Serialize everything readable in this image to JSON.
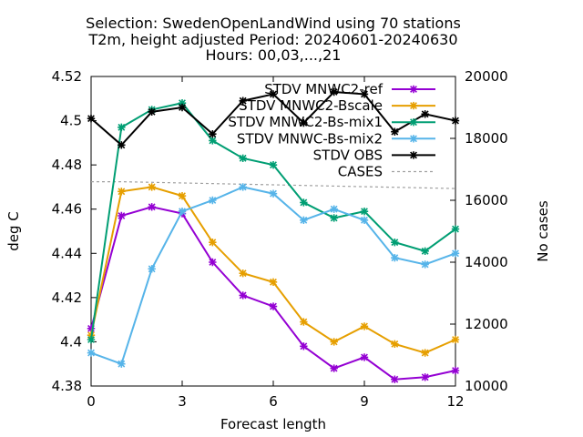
{
  "chart_data": {
    "type": "line",
    "title_lines": [
      "Selection: SwedenOpenLandWind using    70 stations",
      "T2m, height adjusted   Period: 20240601-20240630",
      "Hours: 00,03,...,21"
    ],
    "xlabel": "Forecast length",
    "ylabel": "deg C",
    "y2label": "No cases",
    "xlim": [
      0,
      12
    ],
    "ylim": [
      4.38,
      4.52
    ],
    "y2lim": [
      10000,
      20000
    ],
    "xticks": [
      0,
      3,
      6,
      9,
      12
    ],
    "yticks": [
      4.38,
      4.4,
      4.42,
      4.44,
      4.46,
      4.48,
      4.5,
      4.52
    ],
    "y2ticks": [
      10000,
      12000,
      14000,
      16000,
      18000,
      20000
    ],
    "legend_position": "top-right",
    "x": [
      0,
      1,
      2,
      3,
      4,
      5,
      6,
      7,
      8,
      9,
      10,
      11,
      12
    ],
    "series": [
      {
        "name": "STDV MNWC2-ref",
        "color": "#9400d3",
        "axis": "y1",
        "marker": "star",
        "values": [
          4.406,
          4.457,
          4.461,
          4.458,
          4.436,
          4.421,
          4.416,
          4.398,
          4.388,
          4.393,
          4.383,
          4.384,
          4.387
        ]
      },
      {
        "name": "STDV MNWC2-Bscale",
        "color": "#e69f00",
        "axis": "y1",
        "marker": "star",
        "values": [
          4.403,
          4.468,
          4.47,
          4.466,
          4.445,
          4.431,
          4.427,
          4.409,
          4.4,
          4.407,
          4.399,
          4.395,
          4.401
        ]
      },
      {
        "name": "STDV MNWC2-Bs-mix1",
        "color": "#009e73",
        "axis": "y1",
        "marker": "star",
        "values": [
          4.401,
          4.497,
          4.505,
          4.508,
          4.491,
          4.483,
          4.48,
          4.463,
          4.456,
          4.459,
          4.445,
          4.441,
          4.451
        ]
      },
      {
        "name": "STDV MNWC-Bs-mix2",
        "color": "#56b4e9",
        "axis": "y1",
        "marker": "star",
        "values": [
          4.395,
          4.39,
          4.433,
          4.459,
          4.464,
          4.47,
          4.467,
          4.455,
          4.46,
          4.455,
          4.438,
          4.435,
          4.44
        ]
      },
      {
        "name": "STDV OBS",
        "color": "#000000",
        "axis": "y1",
        "marker": "star",
        "values": [
          4.501,
          4.489,
          4.504,
          4.506,
          4.494,
          4.509,
          4.512,
          4.499,
          4.513,
          4.512,
          4.495,
          4.503,
          4.5
        ]
      },
      {
        "name": "CASES",
        "color": "#a0a0a0",
        "axis": "y2",
        "marker": "none",
        "dashed": true,
        "values": [
          16600,
          16600,
          16580,
          16560,
          16540,
          16520,
          16500,
          16480,
          16460,
          16440,
          16420,
          16400,
          16380
        ]
      }
    ]
  }
}
